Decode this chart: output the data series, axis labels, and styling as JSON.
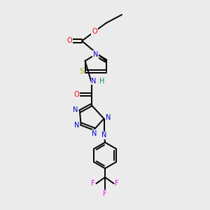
{
  "background_color": "#ebebeb",
  "colors": {
    "C": "#000000",
    "N": "#0000cc",
    "O": "#ff0000",
    "S": "#aaaa00",
    "F": "#ff00ff",
    "H": "#008888",
    "bond": "#000000"
  },
  "lw": 1.4,
  "fs": 7.0
}
